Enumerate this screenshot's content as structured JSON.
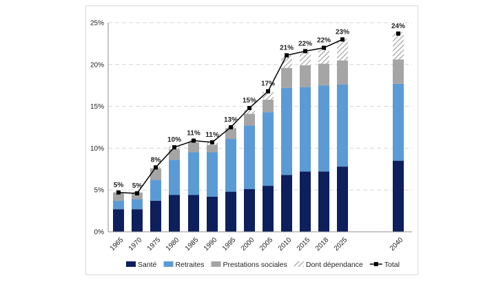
{
  "chart_data": {
    "type": "bar",
    "stacked": true,
    "title": "",
    "xlabel": "",
    "ylabel": "",
    "ylim": [
      0,
      25
    ],
    "yticks": [
      0,
      5,
      10,
      15,
      20,
      25
    ],
    "ytick_labels": [
      "0%",
      "5%",
      "10%",
      "15%",
      "20%",
      "25%"
    ],
    "categories": [
      "1965",
      "1970",
      "1975",
      "1980",
      "1985",
      "1990",
      "1995",
      "2000",
      "2005",
      "2010",
      "2015",
      "2018",
      "2025",
      "2040"
    ],
    "series": [
      {
        "name": "Santé",
        "color": "#0d1f5c",
        "pattern": "solid",
        "values": [
          2.7,
          2.7,
          3.7,
          4.4,
          4.4,
          4.2,
          4.8,
          5.1,
          5.5,
          6.8,
          7.2,
          7.2,
          7.8,
          8.5
        ]
      },
      {
        "name": "Retraites",
        "color": "#5b9bd5",
        "pattern": "solid",
        "values": [
          1.0,
          1.2,
          2.5,
          4.2,
          5.1,
          5.3,
          6.3,
          7.6,
          8.8,
          10.4,
          10.1,
          10.3,
          9.8,
          9.2
        ]
      },
      {
        "name": "Prestations sociales",
        "color": "#a5a5a5",
        "pattern": "solid",
        "values": [
          1.0,
          0.8,
          1.4,
          1.3,
          1.2,
          0.9,
          1.3,
          1.4,
          1.5,
          2.4,
          2.6,
          2.6,
          2.9,
          2.9
        ]
      },
      {
        "name": "Dont dépendance",
        "color": "#a5a5a5",
        "pattern": "hatch",
        "values": [
          0.1,
          0.1,
          0.2,
          0.3,
          0.3,
          0.3,
          0.3,
          0.5,
          0.9,
          1.5,
          1.6,
          1.7,
          2.6,
          3.3
        ]
      }
    ],
    "line": {
      "name": "Total",
      "color": "#000000",
      "values": [
        4.7,
        4.6,
        7.7,
        10.1,
        10.9,
        10.7,
        12.5,
        14.8,
        16.8,
        21.1,
        21.6,
        22.0,
        23.0,
        23.7
      ]
    },
    "data_labels": [
      "5%",
      "5%",
      "8%",
      "10%",
      "11%",
      "11%",
      "13%",
      "15%",
      "17%",
      "21%",
      "22%",
      "22%",
      "23%",
      "24%"
    ],
    "line_connected_until": "2025",
    "legend_position": "bottom",
    "grid": "horizontal dashed"
  }
}
